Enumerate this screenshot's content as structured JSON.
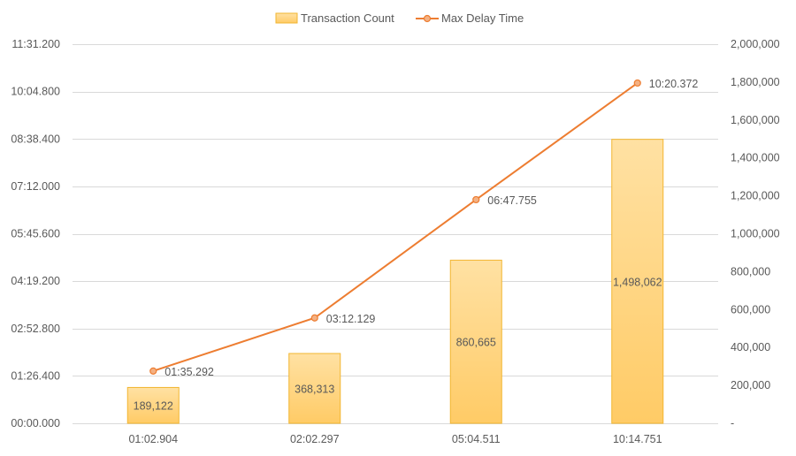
{
  "chart_data": {
    "type": "bar",
    "categories": [
      "01:02.904",
      "02:02.297",
      "05:04.511",
      "10:14.751"
    ],
    "series": [
      {
        "name": "Transaction Count",
        "type": "bar",
        "axis": "right",
        "values": [
          189122,
          368313,
          860665,
          1498062
        ],
        "labels": [
          "189,122",
          "368,313",
          "860,665",
          "1,498,062"
        ],
        "color": "#FFD479"
      },
      {
        "name": "Max Delay Time",
        "type": "line",
        "axis": "left",
        "values_seconds": [
          95.292,
          192.129,
          407.755,
          620.372
        ],
        "labels": [
          "01:35.292",
          "03:12.129",
          "06:47.755",
          "10:20.372"
        ],
        "color": "#ED7D31"
      }
    ],
    "y_left": {
      "ticks": [
        "00:00.000",
        "01:26.400",
        "02:52.800",
        "04:19.200",
        "05:45.600",
        "07:12.000",
        "08:38.400",
        "10:04.800",
        "11:31.200"
      ],
      "tick_values_seconds": [
        0,
        86.4,
        172.8,
        259.2,
        345.6,
        432,
        518.4,
        604.8,
        691.2
      ],
      "range": [
        0,
        691.2
      ]
    },
    "y_right": {
      "ticks": [
        "-",
        "200,000",
        "400,000",
        "600,000",
        "800,000",
        "1,000,000",
        "1,200,000",
        "1,400,000",
        "1,600,000",
        "1,800,000",
        "2,000,000"
      ],
      "tick_values": [
        0,
        200000,
        400000,
        600000,
        800000,
        1000000,
        1200000,
        1400000,
        1600000,
        1800000,
        2000000
      ],
      "range": [
        0,
        2000000
      ]
    },
    "grid": true,
    "legend_position": "top-center",
    "gridline_color": "#D9D9D9",
    "axis_text_color": "#595959"
  }
}
